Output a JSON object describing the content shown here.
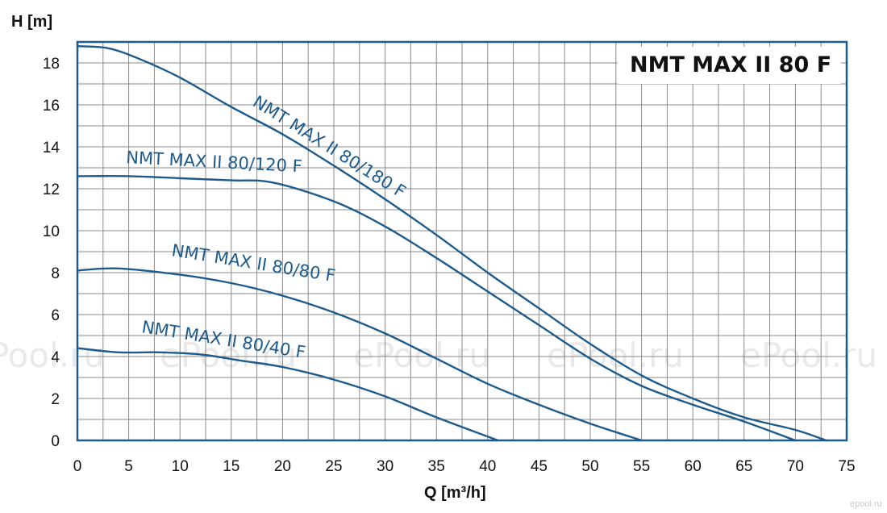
{
  "chart_data": {
    "type": "line",
    "title": "NMT MAX II 80 F",
    "xlabel": "Q [m³/h]",
    "ylabel": "H [m]",
    "xlim": [
      0,
      75
    ],
    "ylim": [
      0,
      19
    ],
    "xticks": [
      0,
      5,
      10,
      15,
      20,
      25,
      30,
      35,
      40,
      45,
      50,
      55,
      60,
      65,
      70,
      75
    ],
    "yticks": [
      0,
      2,
      4,
      6,
      8,
      10,
      12,
      14,
      16,
      18
    ],
    "grid": true,
    "series": [
      {
        "name": "NMT  MAX II 80/180 F",
        "points": [
          [
            0,
            18.8
          ],
          [
            3,
            18.7
          ],
          [
            6,
            18.2
          ],
          [
            10,
            17.3
          ],
          [
            15,
            15.9
          ],
          [
            20,
            14.6
          ],
          [
            25,
            13.1
          ],
          [
            30,
            11.5
          ],
          [
            35,
            9.8
          ],
          [
            40,
            8.0
          ],
          [
            45,
            6.3
          ],
          [
            50,
            4.6
          ],
          [
            55,
            3.1
          ],
          [
            60,
            2.0
          ],
          [
            65,
            1.1
          ],
          [
            70,
            0.5
          ],
          [
            73,
            0.0
          ]
        ]
      },
      {
        "name": "NMT  MAX II 80/120 F",
        "points": [
          [
            0,
            12.6
          ],
          [
            5,
            12.6
          ],
          [
            10,
            12.5
          ],
          [
            15,
            12.4
          ],
          [
            19,
            12.3
          ],
          [
            25,
            11.4
          ],
          [
            30,
            10.2
          ],
          [
            35,
            8.7
          ],
          [
            40,
            7.1
          ],
          [
            45,
            5.5
          ],
          [
            50,
            3.9
          ],
          [
            55,
            2.6
          ],
          [
            60,
            1.7
          ],
          [
            65,
            0.9
          ],
          [
            70,
            0.0
          ]
        ]
      },
      {
        "name": "NMT  MAX II 80/80 F",
        "points": [
          [
            0,
            8.1
          ],
          [
            4,
            8.2
          ],
          [
            10,
            7.9
          ],
          [
            15,
            7.5
          ],
          [
            20,
            6.9
          ],
          [
            25,
            6.1
          ],
          [
            30,
            5.1
          ],
          [
            35,
            3.9
          ],
          [
            40,
            2.7
          ],
          [
            45,
            1.7
          ],
          [
            50,
            0.8
          ],
          [
            55,
            0.0
          ]
        ]
      },
      {
        "name": "NMT  MAX II 80/40 F",
        "points": [
          [
            0,
            4.4
          ],
          [
            4,
            4.2
          ],
          [
            8,
            4.2
          ],
          [
            12,
            4.1
          ],
          [
            16,
            3.8
          ],
          [
            20,
            3.5
          ],
          [
            25,
            2.9
          ],
          [
            30,
            2.1
          ],
          [
            35,
            1.1
          ],
          [
            41,
            0.0
          ]
        ]
      }
    ],
    "line_color": "#1d5b8c",
    "grid_color": "#8a8a8a",
    "frame_color": "#1d5b8c",
    "watermark": "ePool.ru",
    "corner_logo": "epool.ru"
  }
}
